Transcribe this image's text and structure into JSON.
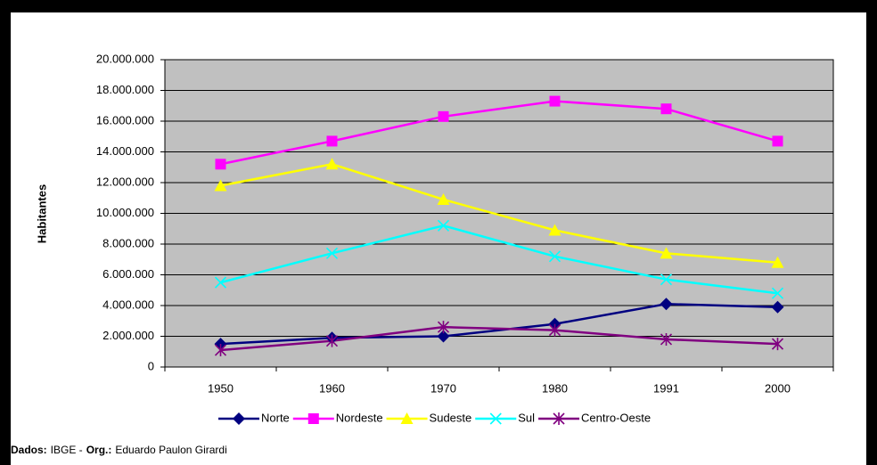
{
  "chart_data": {
    "type": "line",
    "y_label": "Habitantes",
    "categories": [
      "1950",
      "1960",
      "1970",
      "1980",
      "1991",
      "2000"
    ],
    "series": [
      {
        "name": "Norte",
        "color": "#000080",
        "marker": "diamond",
        "values": [
          1500000,
          1900000,
          2000000,
          2800000,
          4100000,
          3900000
        ]
      },
      {
        "name": "Nordeste",
        "color": "#FF00FF",
        "marker": "square",
        "values": [
          13200000,
          14700000,
          16300000,
          17300000,
          16800000,
          14700000
        ]
      },
      {
        "name": "Sudeste",
        "color": "#FFFF00",
        "marker": "triangle",
        "values": [
          11800000,
          13200000,
          10900000,
          8900000,
          7400000,
          6800000
        ]
      },
      {
        "name": "Sul",
        "color": "#00FFFF",
        "marker": "x",
        "values": [
          5500000,
          7400000,
          9200000,
          7200000,
          5700000,
          4800000
        ]
      },
      {
        "name": "Centro-Oeste",
        "color": "#800080",
        "marker": "star",
        "values": [
          1100000,
          1700000,
          2600000,
          2400000,
          1800000,
          1500000
        ]
      }
    ],
    "ylim": [
      0,
      20000000
    ],
    "yticks": [
      0,
      {
        "value": 2000000,
        "label": "2.000.000"
      },
      {
        "value": 4000000,
        "label": "4.000.000"
      },
      {
        "value": 6000000,
        "label": "6.000.000"
      },
      {
        "value": 8000000,
        "label": "8.000.000"
      },
      {
        "value": 10000000,
        "label": "10.000.000"
      },
      {
        "value": 12000000,
        "label": "12.000.000"
      },
      {
        "value": 14000000,
        "label": "14.000.000"
      },
      {
        "value": 16000000,
        "label": "16.000.000"
      },
      {
        "value": 18000000,
        "label": "18.000.000"
      },
      {
        "value": 20000000,
        "label": "20.000.000"
      }
    ],
    "grid": true,
    "legend": "bottom",
    "plot_background": "#C0C0C0",
    "source": [
      {
        "text": "Dados:",
        "bold": true
      },
      {
        "text": "IBGE -",
        "bold": false
      },
      {
        "text": "Org.:",
        "bold": true
      },
      {
        "text": "Eduardo Paulon Girardi",
        "bold": false
      }
    ]
  }
}
